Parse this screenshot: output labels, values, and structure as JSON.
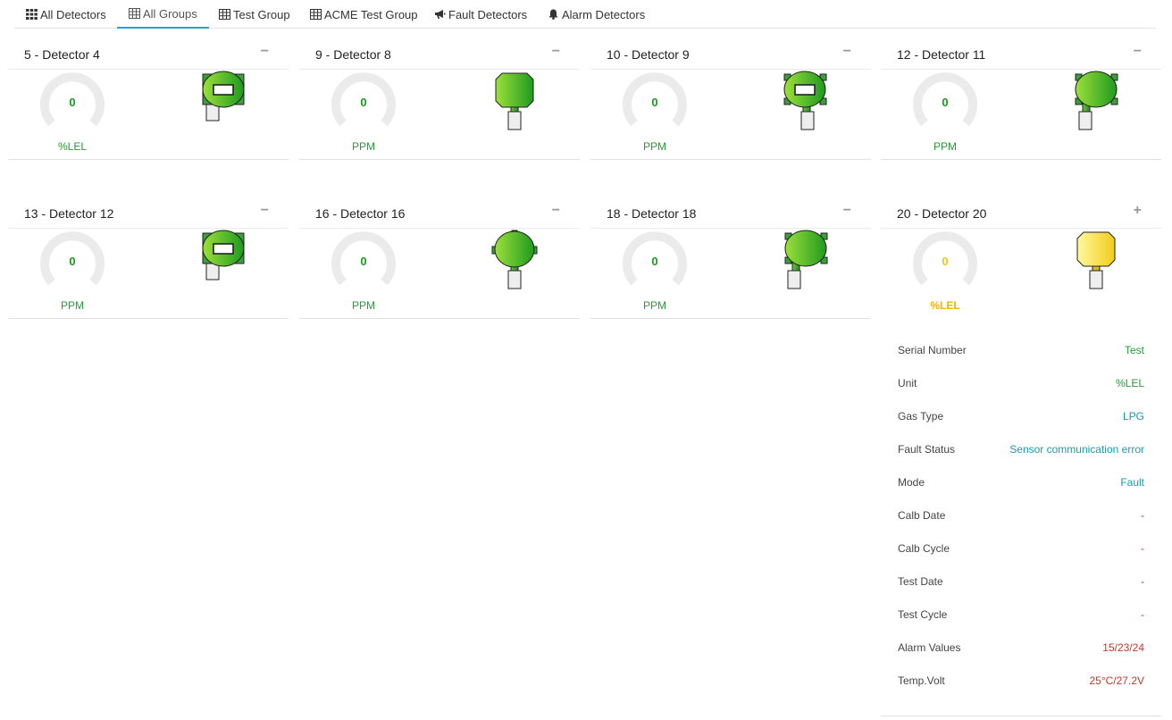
{
  "tabs": [
    {
      "label": "All Detectors",
      "icon": "grid-icon"
    },
    {
      "label": "All Groups",
      "icon": "table-icon",
      "active": true
    },
    {
      "label": "Test Group",
      "icon": "table-icon"
    },
    {
      "label": "ACME Test Group",
      "icon": "table-icon"
    },
    {
      "label": "Fault Detectors",
      "icon": "megaphone-icon"
    },
    {
      "label": "Alarm Detectors",
      "icon": "bell-icon"
    }
  ],
  "detectors": [
    {
      "title": "5 - Detector 4",
      "value": "0",
      "unit": "%LEL",
      "toggle": "−",
      "device_style": "square-display",
      "color": "green"
    },
    {
      "title": "9 - Detector 8",
      "value": "0",
      "unit": "PPM",
      "toggle": "−",
      "device_style": "octagon",
      "color": "green"
    },
    {
      "title": "10 - Detector 9",
      "value": "0",
      "unit": "PPM",
      "toggle": "−",
      "device_style": "round-display",
      "color": "green"
    },
    {
      "title": "12 - Detector 11",
      "value": "0",
      "unit": "PPM",
      "toggle": "−",
      "device_style": "round-tabs",
      "color": "green"
    },
    {
      "title": "13 - Detector 12",
      "value": "0",
      "unit": "PPM",
      "toggle": "−",
      "device_style": "square-display",
      "color": "green"
    },
    {
      "title": "16 - Detector 16",
      "value": "0",
      "unit": "PPM",
      "toggle": "−",
      "device_style": "round-side",
      "color": "green"
    },
    {
      "title": "18 - Detector 18",
      "value": "0",
      "unit": "PPM",
      "toggle": "−",
      "device_style": "round-tabs",
      "color": "green"
    },
    {
      "title": "20 - Detector 20",
      "value": "0",
      "unit": "%LEL",
      "toggle": "+",
      "device_style": "octagon",
      "color": "yellow"
    }
  ],
  "details": [
    {
      "label": "Serial Number",
      "value": "Test",
      "color": "#2a9a3a"
    },
    {
      "label": "Unit",
      "value": "%LEL",
      "color": "#2a9a3a"
    },
    {
      "label": "Gas Type",
      "value": "LPG",
      "color": "#1a9ab0"
    },
    {
      "label": "Fault Status",
      "value": "Sensor communication error",
      "color": "#1a9ab0"
    },
    {
      "label": "Mode",
      "value": "Fault",
      "color": "#1a9ab0"
    },
    {
      "label": "Calb Date",
      "value": "-",
      "color": "#555555"
    },
    {
      "label": "Calb Cycle",
      "value": "-",
      "color": "#c0392b"
    },
    {
      "label": "Test Date",
      "value": "-",
      "color": "#555555"
    },
    {
      "label": "Test Cycle",
      "value": "-",
      "color": "#c0392b"
    },
    {
      "label": "Alarm Values",
      "value": "15/23/24",
      "color": "#c0392b"
    },
    {
      "label": "Temp.Volt",
      "value": "25°C/27.2V",
      "color": "#c0392b"
    }
  ],
  "colors": {
    "green_value": "#1a9a1a",
    "yellow_value": "#f0c419",
    "tab_active": "#2a9fd6",
    "gauge_track": "#ebebeb"
  }
}
